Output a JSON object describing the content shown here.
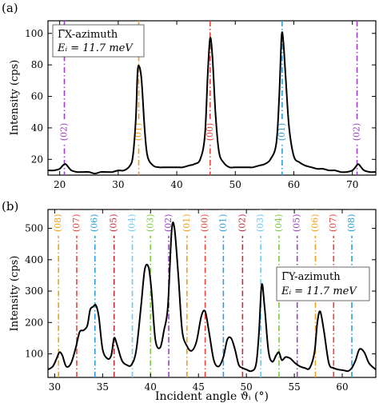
{
  "chart_data": [
    {
      "panel_label": "(a)",
      "type": "line",
      "xlim": [
        18,
        74
      ],
      "ylim": [
        10,
        108
      ],
      "xticks": [
        20,
        30,
        40,
        50,
        60,
        70
      ],
      "yticks": [
        20,
        40,
        60,
        80,
        100
      ],
      "xlabel": "",
      "ylabel": "Intensity (cps)",
      "legend": {
        "line1": "Γ̅X-azimuth",
        "line2": "Eᵢ = 11.7 meV",
        "position": "top-left"
      },
      "series": [
        {
          "x": [
            18,
            19,
            20,
            20.5,
            21,
            21.5,
            22,
            23,
            24,
            25,
            26,
            27,
            28,
            29,
            30,
            31,
            32,
            32.5,
            33,
            33.3,
            33.6,
            34,
            34.5,
            35,
            36,
            37,
            38,
            39,
            40,
            41,
            42,
            43,
            44,
            44.8,
            45.3,
            45.7,
            46.1,
            46.6,
            47.2,
            48,
            49,
            50,
            51,
            52,
            53,
            54,
            55,
            56,
            57,
            57.5,
            57.9,
            58.2,
            58.6,
            59.2,
            60,
            61,
            62,
            63,
            64,
            65,
            66,
            67,
            68,
            69,
            70,
            70.5,
            71,
            71.5,
            72,
            73,
            74
          ],
          "y": [
            13,
            13,
            14,
            16,
            17,
            15,
            13,
            12,
            12,
            12,
            11,
            12,
            12,
            12,
            13,
            13,
            16,
            22,
            45,
            75,
            79,
            70,
            40,
            22,
            16,
            15,
            15,
            15,
            15,
            15,
            16,
            17,
            20,
            35,
            75,
            97,
            85,
            50,
            25,
            18,
            15,
            15,
            15,
            15,
            15,
            16,
            17,
            20,
            30,
            60,
            98,
            95,
            72,
            40,
            22,
            18,
            16,
            15,
            14,
            14,
            13,
            13,
            12,
            12,
            13,
            15,
            17,
            15,
            13,
            12,
            12
          ]
        }
      ],
      "vlines": [
        {
          "x": 20.8,
          "color": "#9b3fbf",
          "label": "(02)"
        },
        {
          "x": 33.5,
          "color": "#f0a020",
          "label": "(01)"
        },
        {
          "x": 45.7,
          "color": "#e8453c",
          "label": "(00)"
        },
        {
          "x": 58.0,
          "color": "#2f9ed6",
          "label": "(01)"
        },
        {
          "x": 70.8,
          "color": "#9b3fbf",
          "label": "(02)"
        }
      ]
    },
    {
      "panel_label": "(b)",
      "type": "line",
      "xlim": [
        29.3,
        63.5
      ],
      "ylim": [
        25,
        560
      ],
      "xticks": [
        30,
        35,
        40,
        45,
        50,
        55,
        60
      ],
      "yticks": [
        100,
        200,
        300,
        400,
        500
      ],
      "xlabel": "Incident angle ϑᵢ (°)",
      "ylabel": "Intensity (cps)",
      "legend": {
        "line1": "Γ̅Y-azimuth",
        "line2": "Eᵢ = 11.7 meV",
        "position": "center-right"
      },
      "series": [
        {
          "x": [
            29.3,
            29.8,
            30.2,
            30.5,
            30.8,
            31.2,
            31.7,
            32.2,
            32.6,
            33,
            33.4,
            33.7,
            34,
            34.3,
            34.6,
            35,
            35.5,
            35.9,
            36.2,
            36.5,
            37,
            37.5,
            38,
            38.5,
            39,
            39.4,
            39.8,
            40.1,
            40.5,
            41,
            41.4,
            41.8,
            42.2,
            42.5,
            42.9,
            43.3,
            43.8,
            44.3,
            44.8,
            45.3,
            45.7,
            46.1,
            46.6,
            47.1,
            47.6,
            48,
            48.4,
            48.8,
            49.2,
            49.6,
            50,
            50.5,
            51,
            51.3,
            51.6,
            51.9,
            52.3,
            52.7,
            53.1,
            53.4,
            53.7,
            54.1,
            54.6,
            55.1,
            55.6,
            56.1,
            56.6,
            57.1,
            57.4,
            57.7,
            58.1,
            58.6,
            59.1,
            59.6,
            60.1,
            60.6,
            61,
            61.4,
            61.8,
            62.3,
            62.8,
            63.5
          ],
          "y": [
            50,
            60,
            85,
            105,
            95,
            60,
            70,
            120,
            170,
            175,
            190,
            240,
            250,
            255,
            220,
            115,
            85,
            95,
            150,
            130,
            80,
            65,
            65,
            110,
            250,
            370,
            375,
            300,
            145,
            120,
            175,
            250,
            490,
            500,
            350,
            175,
            125,
            110,
            140,
            220,
            235,
            170,
            80,
            60,
            90,
            145,
            150,
            115,
            65,
            55,
            50,
            45,
            65,
            160,
            320,
            250,
            110,
            75,
            95,
            105,
            80,
            90,
            85,
            70,
            60,
            55,
            55,
            105,
            200,
            235,
            170,
            70,
            55,
            50,
            48,
            45,
            55,
            80,
            115,
            105,
            70,
            50
          ]
        }
      ],
      "vlines": [
        {
          "x": 30.4,
          "color": "#f0a020",
          "label": "(08)"
        },
        {
          "x": 32.3,
          "color": "#e8453c",
          "label": "(07)"
        },
        {
          "x": 34.2,
          "color": "#2f9ed6",
          "label": "(06)"
        },
        {
          "x": 36.2,
          "color": "#c0303a",
          "label": "(05)"
        },
        {
          "x": 38.1,
          "color": "#6fc8ef",
          "label": "(04)"
        },
        {
          "x": 40.0,
          "color": "#7ac943",
          "label": "(03)"
        },
        {
          "x": 41.9,
          "color": "#9b3fbf",
          "label": "(02)"
        },
        {
          "x": 43.8,
          "color": "#f0a020",
          "label": "(01)"
        },
        {
          "x": 45.7,
          "color": "#e8453c",
          "label": "(00)"
        },
        {
          "x": 47.6,
          "color": "#2f9ed6",
          "label": "(01)"
        },
        {
          "x": 49.6,
          "color": "#c0303a",
          "label": "(02)"
        },
        {
          "x": 51.5,
          "color": "#6fc8ef",
          "label": "(03)"
        },
        {
          "x": 53.4,
          "color": "#7ac943",
          "label": "(04)"
        },
        {
          "x": 55.3,
          "color": "#9b3fbf",
          "label": "(05)"
        },
        {
          "x": 57.2,
          "color": "#f0a020",
          "label": "(06)"
        },
        {
          "x": 59.1,
          "color": "#e8453c",
          "label": "(07)"
        },
        {
          "x": 61.0,
          "color": "#2f9ed6",
          "label": "(08)"
        }
      ]
    }
  ]
}
